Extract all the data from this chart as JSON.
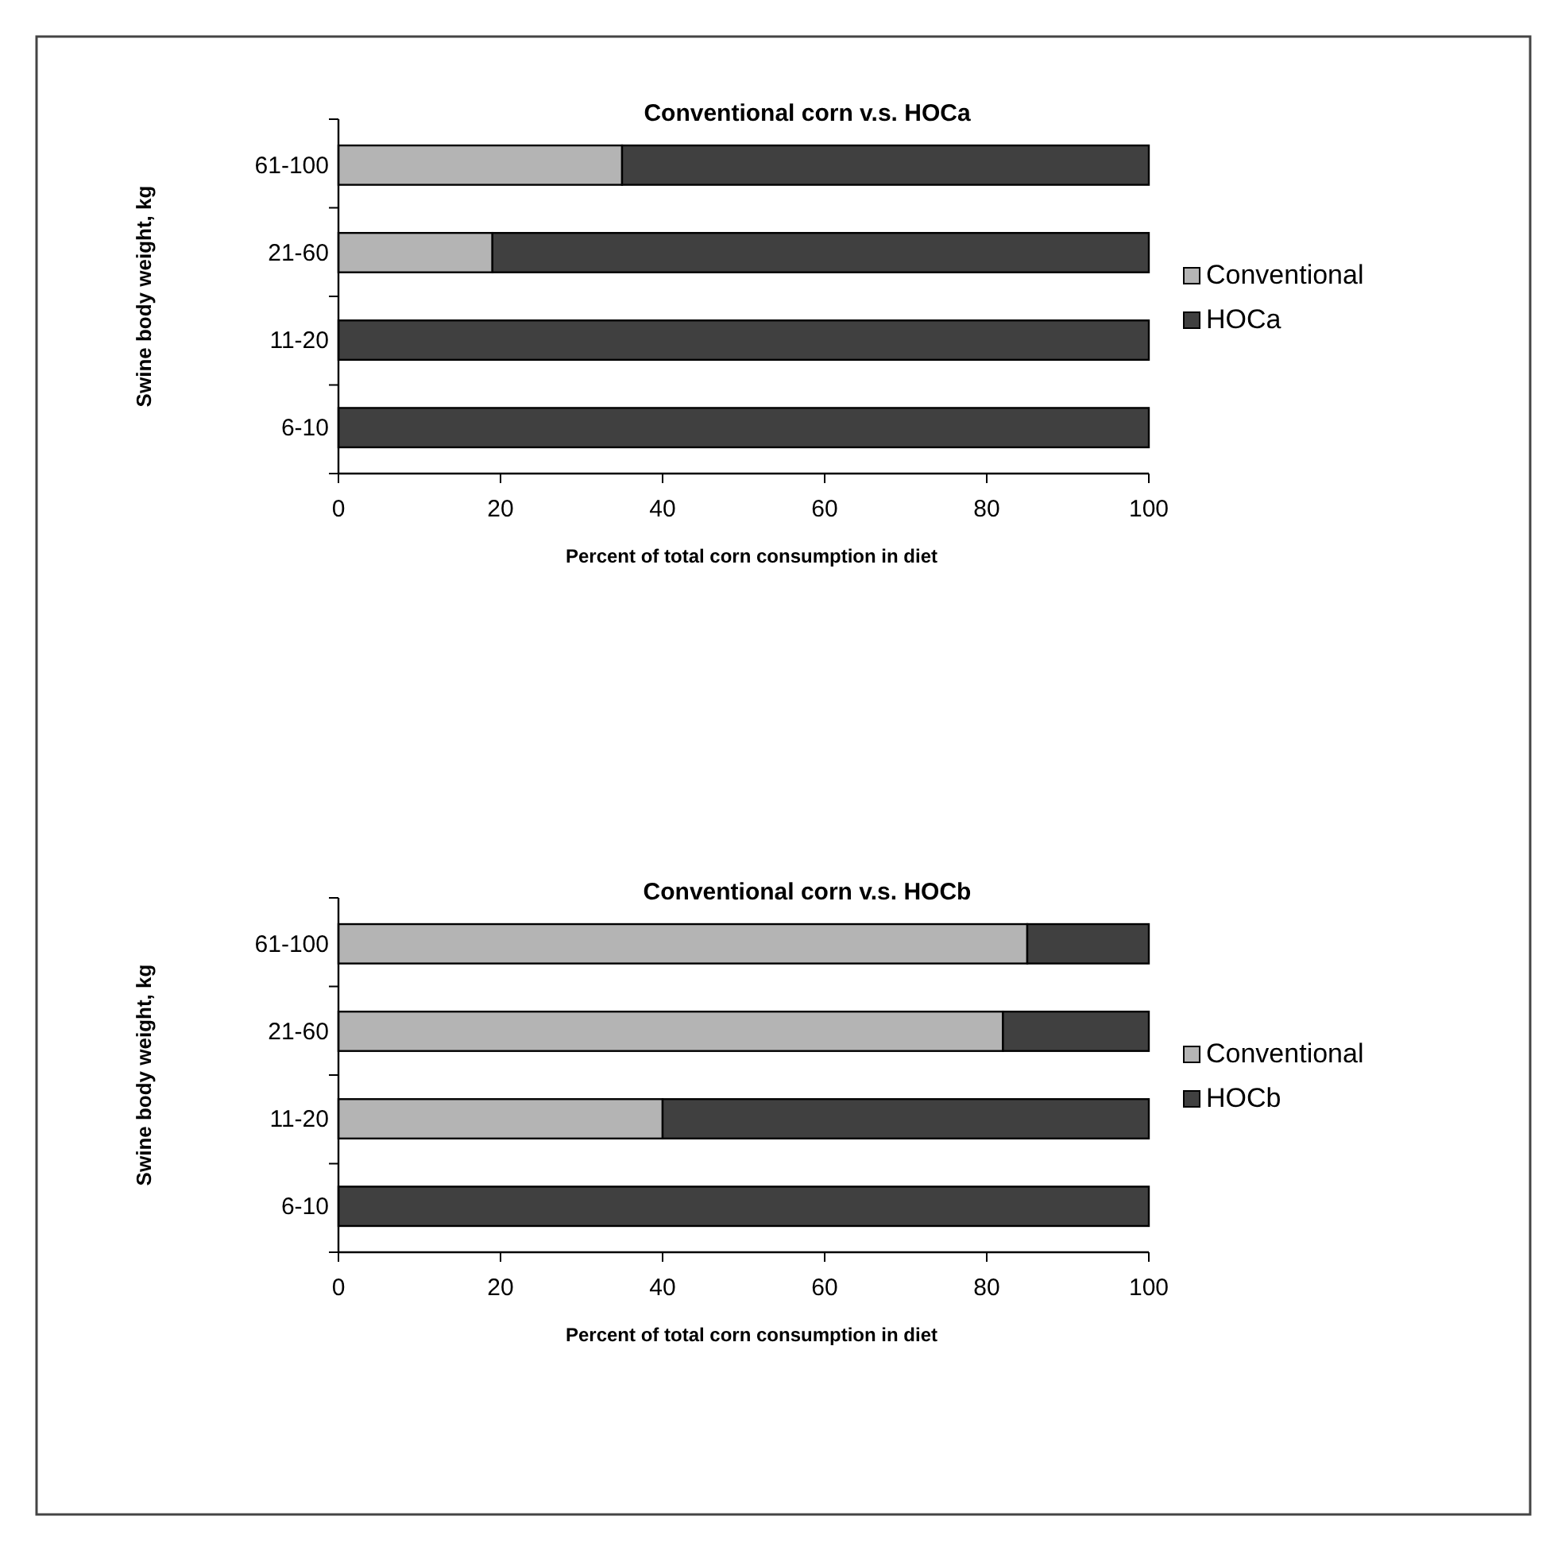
{
  "chart_data": [
    {
      "type": "bar",
      "title": "Conventional corn v.s. HOCa",
      "xlabel": "Percent of total corn consumption in diet",
      "ylabel": "Swine body weight, kg",
      "orientation": "horizontal",
      "stacked": true,
      "categories": [
        "61-100",
        "21-60",
        "11-20",
        "6-10"
      ],
      "xlim": [
        0,
        100
      ],
      "xticks": [
        0,
        20,
        40,
        60,
        80,
        100
      ],
      "legend": "right",
      "grid": false,
      "series": [
        {
          "name": "Conventional",
          "color": "#b4b4b4",
          "values": [
            35,
            19,
            0,
            0
          ]
        },
        {
          "name": "HOCa",
          "color": "#404040",
          "values": [
            65,
            81,
            100,
            100
          ]
        }
      ]
    },
    {
      "type": "bar",
      "title": "Conventional corn v.s. HOCb",
      "xlabel": "Percent of total corn consumption in diet",
      "ylabel": "Swine body weight, kg",
      "orientation": "horizontal",
      "stacked": true,
      "categories": [
        "61-100",
        "21-60",
        "11-20",
        "6-10"
      ],
      "xlim": [
        0,
        100
      ],
      "xticks": [
        0,
        20,
        40,
        60,
        80,
        100
      ],
      "legend": "right",
      "grid": false,
      "series": [
        {
          "name": "Conventional",
          "color": "#b4b4b4",
          "values": [
            85,
            82,
            40,
            0
          ]
        },
        {
          "name": "HOCb",
          "color": "#404040",
          "values": [
            15,
            18,
            60,
            100
          ]
        }
      ]
    }
  ]
}
